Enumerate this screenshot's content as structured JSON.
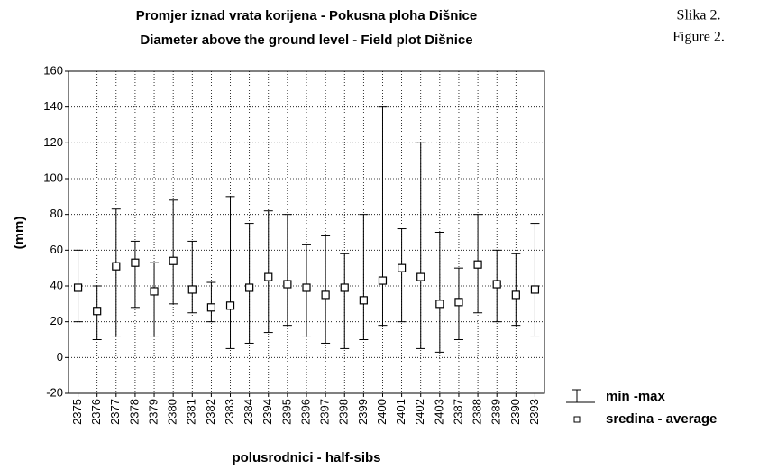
{
  "chart_data": {
    "type": "range",
    "title": "Promjer iznad vrata korijena - Pokusna ploha Dišnice",
    "subtitle": "Diameter above the ground level - Field plot Dišnice",
    "figure_label": [
      "Slika 2.",
      "Figure 2."
    ],
    "y_label": "(mm)",
    "x_label": "polusrodnici - half-sibs",
    "categories": [
      "2375",
      "2376",
      "2377",
      "2378",
      "2379",
      "2380",
      "2381",
      "2382",
      "2383",
      "2384",
      "2394",
      "2395",
      "2396",
      "2397",
      "2398",
      "2399",
      "2400",
      "2401",
      "2402",
      "2403",
      "2387",
      "2388",
      "2389",
      "2390",
      "2393"
    ],
    "range": {
      "name": "min -max",
      "color": "#000000",
      "min": [
        20,
        10,
        12,
        28,
        12,
        30,
        25,
        20,
        5,
        8,
        14,
        18,
        12,
        8,
        5,
        10,
        18,
        20,
        5,
        3,
        10,
        25,
        20,
        18,
        12
      ],
      "max": [
        60,
        40,
        83,
        65,
        53,
        88,
        65,
        42,
        90,
        75,
        82,
        80,
        63,
        68,
        58,
        80,
        140,
        72,
        120,
        70,
        50,
        80,
        60,
        58,
        75
      ]
    },
    "series": [
      {
        "name": "sredina - average",
        "color": "#000000",
        "values": [
          39,
          26,
          51,
          53,
          37,
          54,
          38,
          28,
          29,
          39,
          45,
          41,
          39,
          35,
          39,
          32,
          43,
          50,
          45,
          30,
          31,
          52,
          41,
          35,
          38
        ]
      }
    ],
    "ylim": [
      -20,
      160
    ],
    "yticks": [
      -20,
      0,
      20,
      40,
      60,
      80,
      100,
      120,
      140,
      160
    ],
    "grid": true
  }
}
